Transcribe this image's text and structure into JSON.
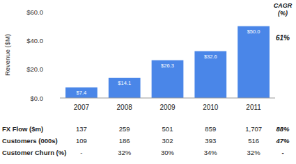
{
  "chart_data": {
    "type": "bar",
    "y_label": "Revenue ($M)",
    "categories": [
      "2007",
      "2008",
      "2009",
      "2010",
      "2011"
    ],
    "values": [
      7.4,
      14.1,
      26.3,
      32.6,
      50.0
    ],
    "value_labels": [
      "$7.4",
      "$14.1",
      "$26.3",
      "$32.6",
      "$50.0"
    ],
    "data_labels": true,
    "color": "#4a86e8",
    "ylim": [
      0,
      60
    ],
    "yticks": [
      {
        "value": 0,
        "label": "$0.0"
      },
      {
        "value": 20,
        "label": "$20.0"
      },
      {
        "value": 40,
        "label": "$40.0"
      },
      {
        "value": 60,
        "label": "$60.0"
      }
    ],
    "grid": false,
    "annotations": [
      {
        "text": "61%"
      }
    ]
  },
  "table": {
    "cagr_header": "CAGR (%)",
    "rows": [
      {
        "label": "FX Flow ($m)",
        "values": [
          "137",
          "259",
          "501",
          "859",
          "1,707"
        ],
        "cagr": "88%"
      },
      {
        "label": "Customers (000s)",
        "values": [
          "109",
          "186",
          "302",
          "393",
          "516"
        ],
        "cagr": "47%"
      },
      {
        "label": "Customer Churn (%)",
        "values": [
          "-",
          "32%",
          "30%",
          "34%",
          "32%"
        ],
        "cagr": "-"
      }
    ]
  }
}
